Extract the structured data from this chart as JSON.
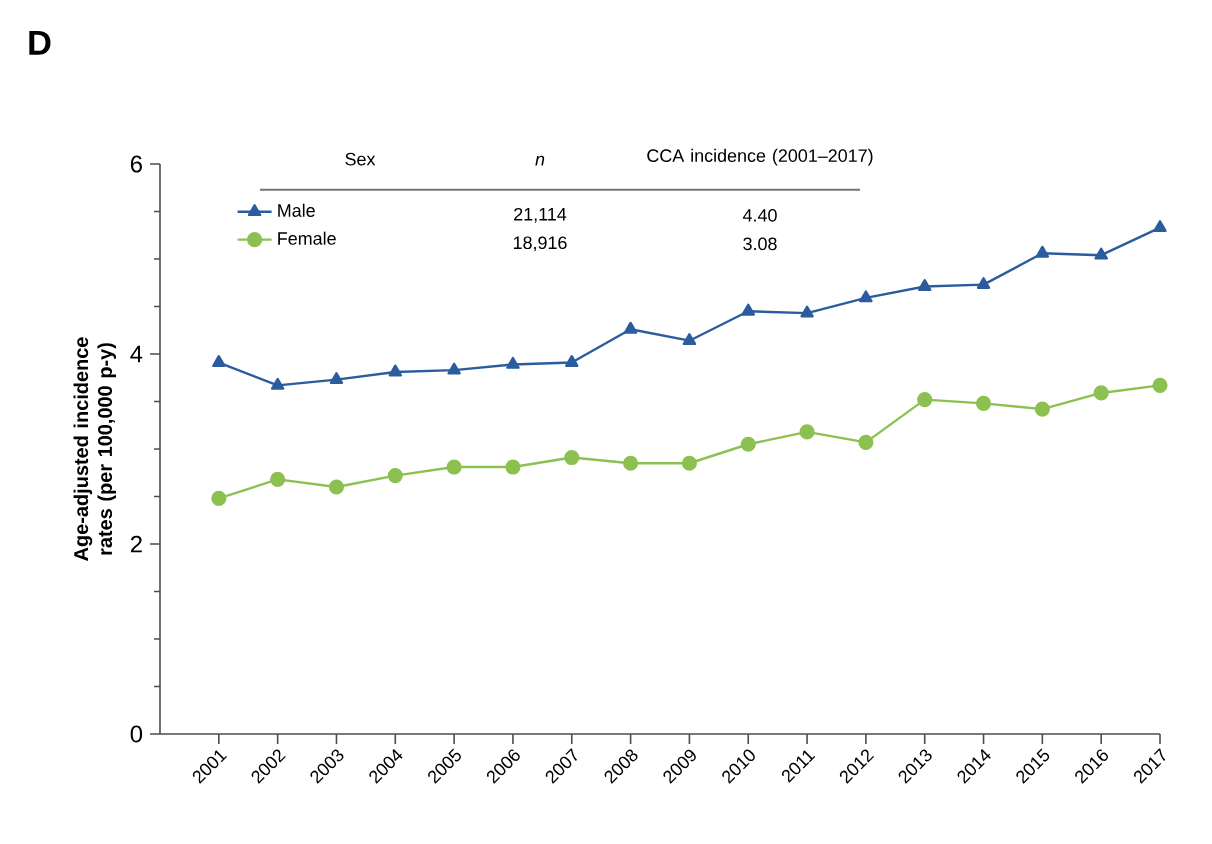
{
  "chart_data": {
    "type": "line",
    "title": "D",
    "ylabel": "Age-adjusted incidence rates (per 100,000 p-y)",
    "x": [
      2001,
      2002,
      2003,
      2004,
      2005,
      2006,
      2007,
      2008,
      2009,
      2010,
      2011,
      2012,
      2013,
      2014,
      2015,
      2016,
      2017
    ],
    "series": [
      {
        "name": "Male",
        "color": "#2b5c9e",
        "marker": "triangle",
        "values": [
          3.91,
          3.67,
          3.73,
          3.81,
          3.83,
          3.89,
          3.91,
          4.26,
          4.14,
          4.45,
          4.43,
          4.59,
          4.71,
          4.73,
          5.06,
          5.04,
          5.33
        ]
      },
      {
        "name": "Female",
        "color": "#8cc152",
        "marker": "circle",
        "values": [
          2.48,
          2.68,
          2.6,
          2.72,
          2.81,
          2.81,
          2.91,
          2.85,
          2.85,
          3.05,
          3.18,
          3.07,
          3.52,
          3.48,
          3.42,
          3.59,
          3.67
        ]
      }
    ],
    "xlim": [
      2000,
      2017
    ],
    "ylim": [
      0,
      6
    ],
    "xticks": [
      2001,
      2002,
      2003,
      2004,
      2005,
      2006,
      2007,
      2008,
      2009,
      2010,
      2011,
      2012,
      2013,
      2014,
      2015,
      2016,
      2017
    ],
    "yticks": [
      0,
      2,
      4,
      6
    ],
    "legend": "top left",
    "grid": false,
    "line_style": "solid",
    "annotations": [
      "Sex",
      "n",
      "CCA incidence (2001–2017)",
      "21,114",
      "4.40",
      "18,916",
      "3.08"
    ]
  }
}
